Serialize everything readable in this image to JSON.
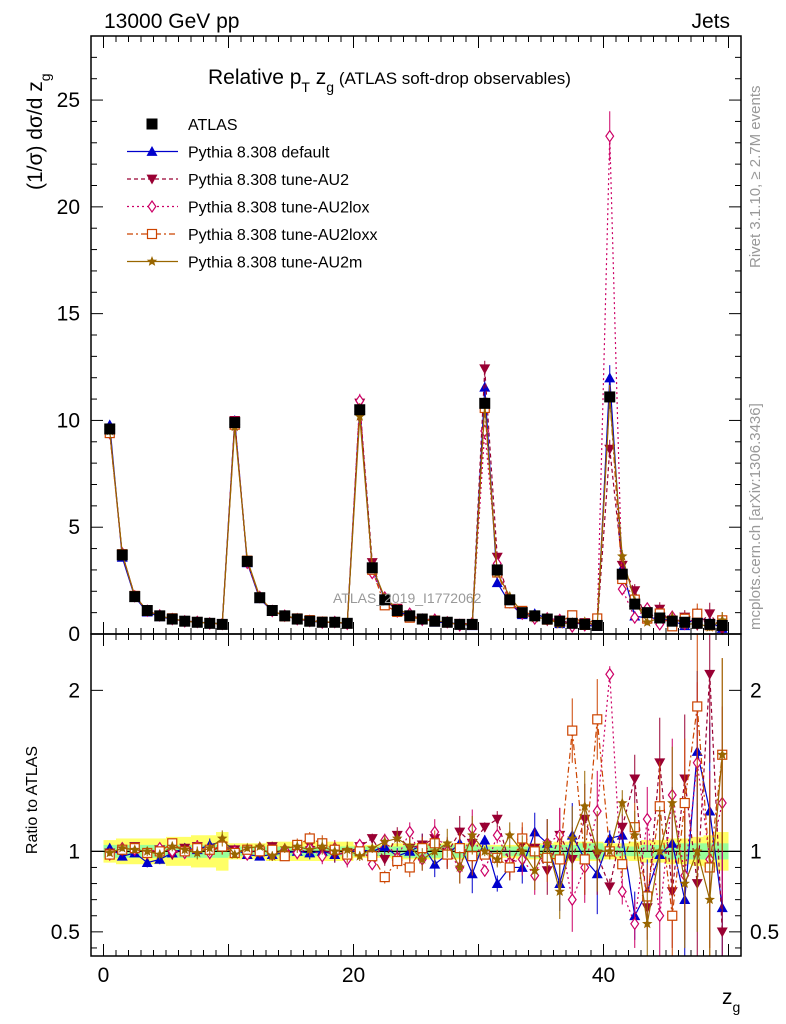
{
  "header": {
    "left": "13000 GeV pp",
    "right": "Jets"
  },
  "side": {
    "rivet": "Rivet 3.1.10, ≥ 2.7M events",
    "mcplots": "mcplots.cern.ch [arXiv:1306.3436]"
  },
  "watermark": "ATLAS_2019_I1772062",
  "chart_data": {
    "type": "scatter",
    "title_main": "Relative p",
    "title_sub": "T",
    "title_mid": " z",
    "title_sub2": "g",
    "title_tail": " (ATLAS soft-drop observables)",
    "ylabel_main": "(1/σ) dσ/d z",
    "ylabel_sub": "g",
    "xlabel_main": "z",
    "xlabel_sub": "g",
    "ratio_ylabel": "Ratio to ATLAS",
    "xlim": [
      -1,
      51
    ],
    "ylim": [
      0,
      28
    ],
    "ratio_ylim": [
      0.35,
      2.35
    ],
    "xticks": [
      "0",
      "20",
      "40"
    ],
    "yticks": [
      "0",
      "5",
      "10",
      "15",
      "20",
      "25"
    ],
    "ratio_yticks": [
      "0.5",
      "1",
      "2"
    ],
    "x": [
      0.5,
      1.5,
      2.5,
      3.5,
      4.5,
      5.5,
      6.5,
      7.5,
      8.5,
      9.5,
      10.5,
      11.5,
      12.5,
      13.5,
      14.5,
      15.5,
      16.5,
      17.5,
      18.5,
      19.5,
      20.5,
      21.5,
      22.5,
      23.5,
      24.5,
      25.5,
      26.5,
      27.5,
      28.5,
      29.5,
      30.5,
      31.5,
      32.5,
      33.5,
      34.5,
      35.5,
      36.5,
      37.5,
      38.5,
      39.5,
      40.5,
      41.5,
      42.5,
      43.5,
      44.5,
      45.5,
      46.5,
      47.5,
      48.5,
      49.5
    ],
    "data_values": [
      9.6,
      3.7,
      1.75,
      1.1,
      0.85,
      0.7,
      0.6,
      0.55,
      0.5,
      0.45,
      9.9,
      3.4,
      1.7,
      1.1,
      0.85,
      0.7,
      0.6,
      0.55,
      0.55,
      0.5,
      10.5,
      3.1,
      1.6,
      1.1,
      0.85,
      0.7,
      0.6,
      0.55,
      0.45,
      0.45,
      10.8,
      3.0,
      1.6,
      1.0,
      0.85,
      0.7,
      0.6,
      0.5,
      0.45,
      0.4,
      11.1,
      2.8,
      1.4,
      1.0,
      0.75,
      0.6,
      0.55,
      0.5,
      0.45,
      0.4
    ],
    "band_inner": [
      0.04,
      0.04,
      0.04,
      0.04,
      0.04,
      0.04,
      0.04,
      0.04,
      0.04,
      0.04,
      0.03,
      0.03,
      0.03,
      0.03,
      0.03,
      0.03,
      0.03,
      0.03,
      0.03,
      0.03,
      0.03,
      0.03,
      0.03,
      0.03,
      0.04,
      0.04,
      0.04,
      0.04,
      0.04,
      0.04,
      0.03,
      0.03,
      0.03,
      0.03,
      0.04,
      0.04,
      0.04,
      0.04,
      0.05,
      0.05,
      0.03,
      0.03,
      0.03,
      0.04,
      0.04,
      0.05,
      0.05,
      0.05,
      0.05,
      0.05
    ],
    "band_outer": [
      0.07,
      0.08,
      0.08,
      0.08,
      0.08,
      0.09,
      0.09,
      0.1,
      0.1,
      0.12,
      0.05,
      0.05,
      0.05,
      0.06,
      0.06,
      0.06,
      0.06,
      0.06,
      0.06,
      0.06,
      0.04,
      0.04,
      0.04,
      0.05,
      0.05,
      0.05,
      0.05,
      0.05,
      0.05,
      0.05,
      0.04,
      0.04,
      0.04,
      0.05,
      0.05,
      0.05,
      0.06,
      0.06,
      0.06,
      0.06,
      0.05,
      0.05,
      0.06,
      0.07,
      0.07,
      0.08,
      0.08,
      0.09,
      0.1,
      0.12
    ],
    "series": [
      {
        "name": "Pythia 8.308 default",
        "color": "#0000cc",
        "marker": "triangle-up",
        "dash": "",
        "ratio": [
          1.02,
          0.97,
          0.99,
          0.93,
          0.95,
          0.99,
          1.02,
          1.01,
          1.04,
          1.06,
          1.01,
          0.98,
          0.97,
          0.98,
          0.99,
          1.0,
          0.99,
          1.0,
          0.98,
          0.99,
          1.01,
          1.0,
          1.03,
          0.97,
          1.0,
          1.04,
          0.92,
          0.98,
          1.05,
          0.86,
          1.07,
          0.8,
          0.9,
          0.9,
          1.12,
          1.05,
          0.8,
          1.1,
          0.95,
          0.86,
          1.08,
          1.1,
          0.6,
          0.75,
          0.98,
          1.05,
          0.7,
          1.62,
          1.25,
          0.65
        ],
        "err": [
          0.02,
          0.02,
          0.02,
          0.03,
          0.03,
          0.03,
          0.03,
          0.04,
          0.04,
          0.05,
          0.02,
          0.02,
          0.02,
          0.03,
          0.03,
          0.04,
          0.04,
          0.05,
          0.05,
          0.05,
          0.03,
          0.03,
          0.04,
          0.05,
          0.06,
          0.07,
          0.08,
          0.09,
          0.1,
          0.12,
          0.03,
          0.05,
          0.08,
          0.1,
          0.12,
          0.15,
          0.17,
          0.2,
          0.22,
          0.25,
          0.05,
          0.08,
          0.15,
          0.2,
          0.28,
          0.35,
          0.4,
          0.5,
          0.55,
          0.6
        ]
      },
      {
        "name": "Pythia 8.308 tune-AU2",
        "color": "#990033",
        "marker": "triangle-down",
        "dash": "4,3",
        "ratio": [
          0.99,
          1.0,
          1.03,
          0.98,
          1.01,
          0.98,
          1.02,
          1.03,
          1.0,
          1.03,
          1.01,
          1.0,
          0.99,
          1.03,
          0.98,
          1.0,
          1.04,
          1.01,
          0.98,
          0.99,
          1.03,
          1.08,
          0.95,
          1.1,
          1.02,
          1.04,
          1.08,
          0.99,
          1.12,
          1.05,
          1.15,
          1.2,
          0.92,
          1.05,
          1.02,
          0.88,
          1.1,
          0.95,
          1.2,
          0.98,
          0.78,
          1.15,
          1.45,
          0.65,
          1.55,
          0.75,
          1.45,
          0.8,
          2.1,
          0.5
        ],
        "err": [
          0.02,
          0.02,
          0.02,
          0.03,
          0.03,
          0.03,
          0.03,
          0.04,
          0.04,
          0.05,
          0.02,
          0.02,
          0.02,
          0.03,
          0.03,
          0.04,
          0.04,
          0.05,
          0.05,
          0.05,
          0.03,
          0.03,
          0.04,
          0.05,
          0.06,
          0.07,
          0.08,
          0.09,
          0.1,
          0.12,
          0.03,
          0.05,
          0.08,
          0.1,
          0.12,
          0.15,
          0.17,
          0.2,
          0.22,
          0.25,
          0.05,
          0.08,
          0.15,
          0.2,
          0.28,
          0.35,
          0.4,
          0.5,
          0.55,
          0.6
        ]
      },
      {
        "name": "Pythia 8.308 tune-AU2lox",
        "color": "#cc0066",
        "marker": "diamond",
        "dash": "2,3",
        "ratio": [
          0.98,
          1.02,
          1.01,
          0.99,
          1.02,
          1.0,
          0.99,
          1.03,
          0.99,
          1.05,
          1.0,
          0.98,
          1.02,
          0.98,
          1.01,
          0.99,
          1.02,
          0.97,
          1.02,
          0.95,
          1.04,
          0.92,
          1.07,
          0.96,
          1.12,
          0.95,
          1.12,
          1.0,
          0.9,
          1.14,
          0.88,
          1.1,
          0.93,
          0.95,
          0.85,
          1.05,
          1.1,
          0.7,
          0.9,
          1.25,
          2.1,
          0.75,
          0.55,
          1.2,
          0.6,
          1.35,
          0.85,
          1.55,
          0.95,
          1.3
        ],
        "err": [
          0.02,
          0.02,
          0.02,
          0.03,
          0.03,
          0.03,
          0.03,
          0.04,
          0.04,
          0.05,
          0.02,
          0.02,
          0.02,
          0.03,
          0.03,
          0.04,
          0.04,
          0.05,
          0.05,
          0.05,
          0.03,
          0.03,
          0.04,
          0.05,
          0.06,
          0.07,
          0.08,
          0.09,
          0.1,
          0.12,
          0.03,
          0.05,
          0.08,
          0.1,
          0.12,
          0.15,
          0.17,
          0.2,
          0.22,
          0.25,
          0.05,
          0.08,
          0.15,
          0.2,
          0.28,
          0.35,
          0.4,
          0.5,
          0.55,
          0.6
        ]
      },
      {
        "name": "Pythia 8.308 tune-AU2loxx",
        "color": "#cc4400",
        "marker": "square-open",
        "dash": "6,3,2,3",
        "ratio": [
          0.98,
          1.01,
          1.02,
          0.99,
          1.0,
          1.05,
          1.0,
          1.02,
          1.01,
          1.03,
          0.99,
          1.01,
          1.0,
          1.01,
          0.97,
          1.04,
          1.08,
          1.05,
          1.01,
          0.98,
          1.0,
          0.97,
          0.84,
          0.94,
          0.9,
          1.02,
          1.05,
          0.98,
          1.02,
          0.97,
          0.98,
          0.96,
          0.9,
          1.08,
          1.0,
          0.96,
          0.95,
          1.75,
          0.95,
          1.82,
          1.0,
          0.92,
          1.15,
          0.72,
          1.28,
          0.6,
          1.3,
          1.9,
          0.9,
          1.6
        ],
        "err": [
          0.02,
          0.02,
          0.02,
          0.03,
          0.03,
          0.03,
          0.03,
          0.04,
          0.04,
          0.05,
          0.02,
          0.02,
          0.02,
          0.03,
          0.03,
          0.04,
          0.04,
          0.05,
          0.05,
          0.05,
          0.03,
          0.03,
          0.04,
          0.05,
          0.06,
          0.07,
          0.08,
          0.09,
          0.1,
          0.12,
          0.03,
          0.05,
          0.08,
          0.1,
          0.12,
          0.15,
          0.17,
          0.2,
          0.22,
          0.25,
          0.05,
          0.08,
          0.15,
          0.2,
          0.28,
          0.35,
          0.4,
          0.5,
          0.55,
          0.6
        ]
      },
      {
        "name": "Pythia 8.308 tune-AU2m",
        "color": "#996600",
        "marker": "star",
        "dash": "",
        "ratio": [
          0.99,
          1.02,
          1.01,
          1.0,
          0.98,
          1.03,
          1.01,
          0.99,
          1.02,
          1.08,
          0.98,
          1.02,
          1.03,
          0.97,
          1.02,
          1.03,
          1.01,
          1.03,
          1.0,
          1.01,
          0.97,
          1.02,
          1.06,
          1.08,
          1.03,
          0.95,
          1.0,
          1.05,
          0.9,
          1.1,
          1.0,
          0.95,
          1.1,
          1.0,
          0.88,
          1.05,
          0.75,
          1.08,
          1.28,
          1.0,
          1.0,
          1.3,
          1.1,
          0.55,
          1.0,
          1.3,
          0.8,
          1.0,
          0.7,
          1.6
        ],
        "err": [
          0.02,
          0.02,
          0.02,
          0.03,
          0.03,
          0.03,
          0.03,
          0.04,
          0.04,
          0.05,
          0.02,
          0.02,
          0.02,
          0.03,
          0.03,
          0.04,
          0.04,
          0.05,
          0.05,
          0.05,
          0.03,
          0.03,
          0.04,
          0.05,
          0.06,
          0.07,
          0.08,
          0.09,
          0.1,
          0.12,
          0.03,
          0.05,
          0.08,
          0.1,
          0.12,
          0.15,
          0.17,
          0.2,
          0.22,
          0.25,
          0.05,
          0.08,
          0.15,
          0.2,
          0.28,
          0.35,
          0.4,
          0.5,
          0.55,
          0.6
        ]
      }
    ],
    "legend": [
      "ATLAS",
      "Pythia 8.308 default",
      "Pythia 8.308 tune-AU2",
      "Pythia 8.308 tune-AU2lox",
      "Pythia 8.308 tune-AU2loxx",
      "Pythia 8.308 tune-AU2m"
    ],
    "band_colors": {
      "inner": "#99ff99",
      "outer": "#ffff66"
    }
  }
}
